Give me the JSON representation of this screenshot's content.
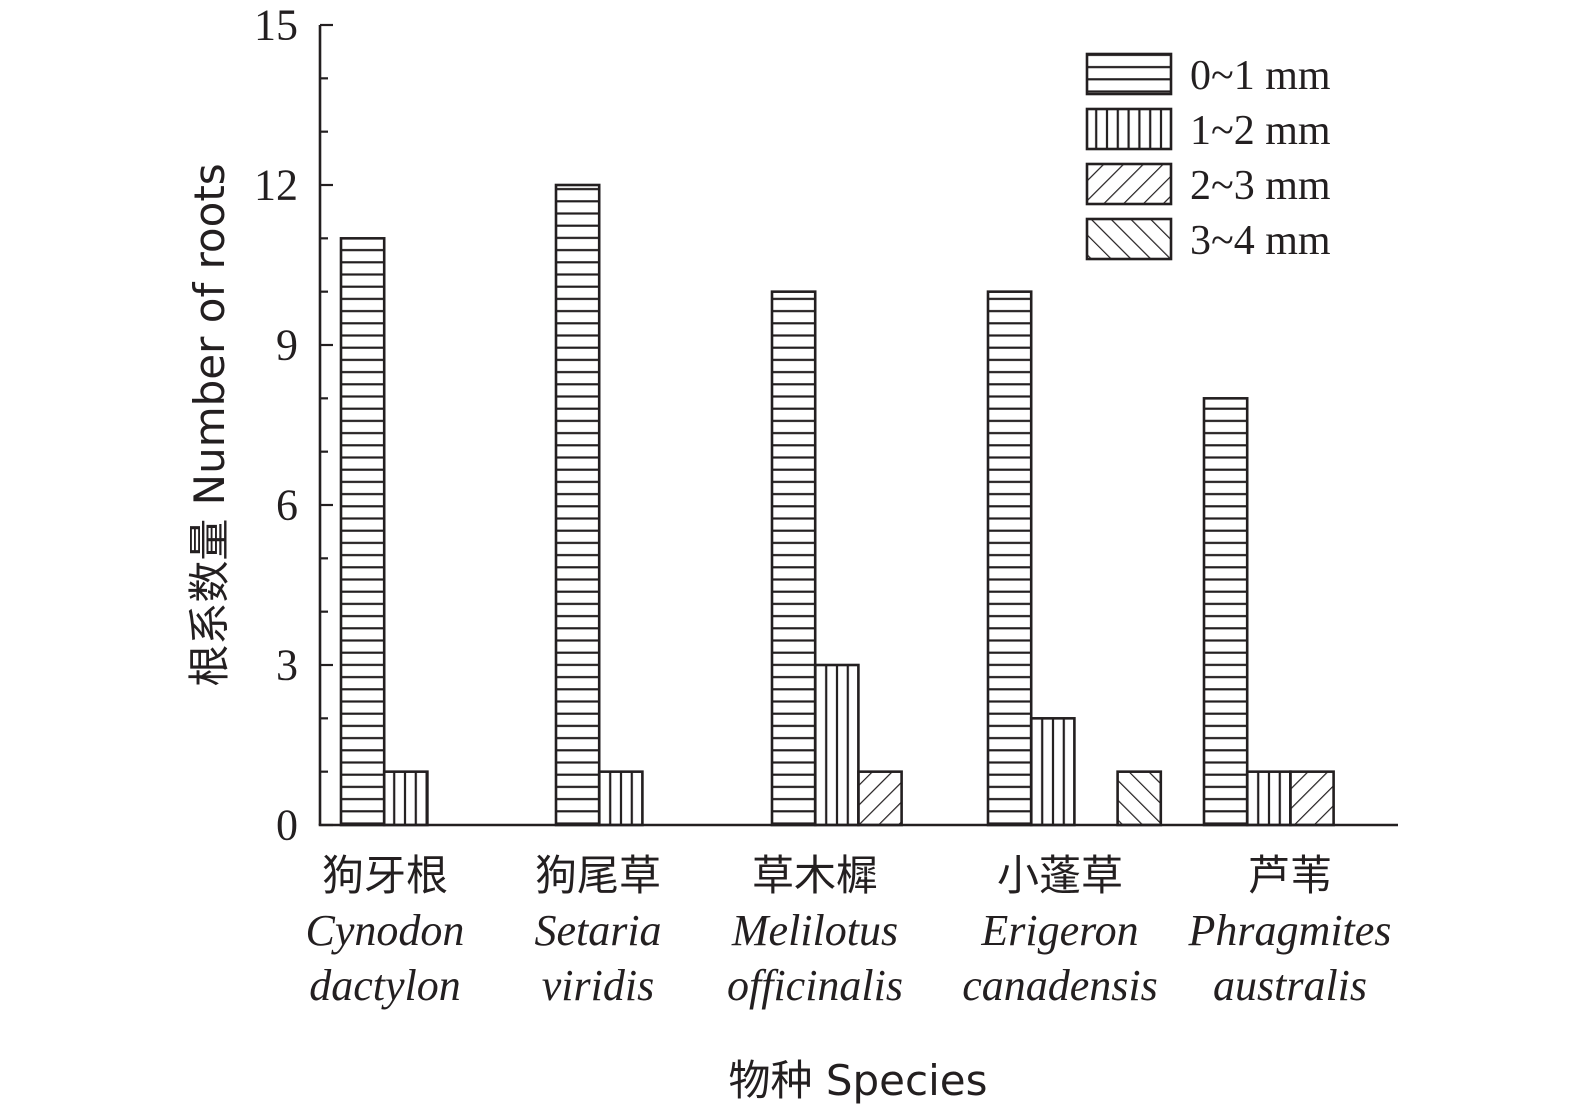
{
  "chart_data": {
    "type": "bar",
    "title": "",
    "xlabel": "物种 Species",
    "ylabel": "根系数量 Number of roots",
    "ylim": [
      0,
      15
    ],
    "yticks": [
      0,
      3,
      6,
      9,
      12,
      15
    ],
    "yticks_labels": [
      "0",
      "3",
      "6",
      "9",
      "12",
      "15"
    ],
    "grid": false,
    "legend_position": "top-right",
    "categories": [
      {
        "cn": "狗牙根",
        "latin": [
          "Cynodon",
          "dactylon"
        ]
      },
      {
        "cn": "狗尾草",
        "latin": [
          "Setaria",
          "viridis"
        ]
      },
      {
        "cn": "草木樨",
        "latin": [
          "Melilotus",
          "officinalis"
        ]
      },
      {
        "cn": "小蓬草",
        "latin": [
          "Erigeron",
          "canadensis"
        ]
      },
      {
        "cn": "芦苇",
        "latin": [
          "Phragmites",
          "australis"
        ]
      }
    ],
    "series": [
      {
        "name": "0~1 mm",
        "pattern": "horizontal",
        "values": [
          11,
          12,
          10,
          10,
          8
        ]
      },
      {
        "name": "1~2 mm",
        "pattern": "vertical",
        "values": [
          1,
          1,
          3,
          2,
          1
        ]
      },
      {
        "name": "2~3 mm",
        "pattern": "diagonal-up",
        "values": [
          0,
          0,
          1,
          0,
          1
        ]
      },
      {
        "name": "3~4 mm",
        "pattern": "diagonal-down",
        "values": [
          0,
          0,
          0,
          1,
          0
        ]
      }
    ]
  },
  "colors": {
    "ink": "#231f20",
    "background": "#ffffff"
  }
}
